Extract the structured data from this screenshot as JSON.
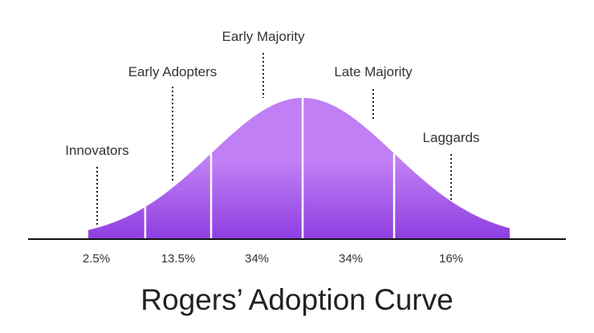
{
  "title": "Rogers’ Adoption Curve",
  "colors": {
    "curve_top": "#c07ff5",
    "curve_bottom": "#8e3ee0",
    "divider": "#ffffff",
    "axis": "#111111",
    "text": "#333333"
  },
  "segments": [
    {
      "name": "Innovators",
      "share": "2.5%",
      "value": 2.5
    },
    {
      "name": "Early Adopters",
      "share": "13.5%",
      "value": 13.5
    },
    {
      "name": "Early Majority",
      "share": "34%",
      "value": 34
    },
    {
      "name": "Late Majority",
      "share": "34%",
      "value": 34
    },
    {
      "name": "Laggards",
      "share": "16%",
      "value": 16
    }
  ]
}
